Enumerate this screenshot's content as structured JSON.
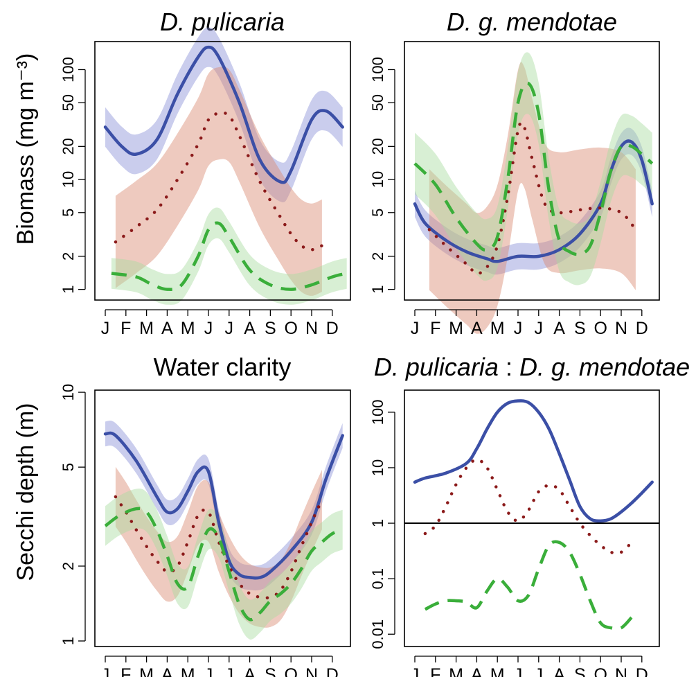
{
  "figure": {
    "ylabels": {
      "top": "Biomass (mg m⁻³)",
      "bottom": "Secchi depth (m)"
    }
  },
  "colors": {
    "solid": "#3b4fa6",
    "dotted": "#8b1a1a",
    "dashed": "#3aae3a",
    "band_solid": "#8a90d8",
    "band_dotted": "#d98a70",
    "band_dashed": "#a8dca0"
  },
  "chart_data": [
    {
      "id": "tl",
      "type": "line",
      "title_parts": [
        {
          "text": "D. pulicaria",
          "italic": true
        }
      ],
      "log": true,
      "ylim": [
        0.8,
        180
      ],
      "ytick_values": [
        1,
        2,
        5,
        10,
        20,
        50,
        100
      ],
      "ytick_labels": [
        "1",
        "2",
        "5",
        "10",
        "20",
        "50",
        "100"
      ],
      "categories": [
        "J",
        "F",
        "M",
        "A",
        "M",
        "J",
        "J",
        "A",
        "S",
        "O",
        "N",
        "D"
      ],
      "series": [
        {
          "style": "solid",
          "band": true,
          "x": [
            0,
            0.8,
            1.5,
            2.5,
            3.5,
            4.5,
            5.0,
            5.5,
            6.5,
            7.5,
            8.5,
            9.0,
            10.0,
            10.7,
            11.5
          ],
          "y": [
            30,
            20,
            17,
            23,
            60,
            130,
            160,
            130,
            50,
            15,
            9.5,
            12,
            35,
            42,
            30
          ]
        },
        {
          "style": "dotted",
          "band": true,
          "x": [
            0.5,
            1.5,
            2.5,
            3.5,
            4.5,
            5.0,
            5.5,
            6.0,
            6.5,
            7.5,
            8.5,
            9.0,
            9.5,
            10.0,
            10.5
          ],
          "y": [
            2.7,
            3.7,
            5.3,
            10,
            21,
            35,
            40,
            38,
            25,
            9.5,
            4.5,
            3.2,
            2.5,
            2.3,
            2.5
          ]
        },
        {
          "style": "dashed",
          "band": true,
          "x": [
            0.3,
            1.5,
            2.3,
            3.0,
            3.7,
            4.5,
            5.0,
            5.5,
            6.0,
            7.0,
            8.0,
            9.0,
            10.0,
            11.0,
            11.7
          ],
          "y": [
            1.4,
            1.3,
            1.1,
            1.0,
            1.1,
            2.0,
            3.5,
            4.0,
            3.0,
            1.5,
            1.1,
            1.0,
            1.1,
            1.3,
            1.4
          ]
        }
      ]
    },
    {
      "id": "tr",
      "type": "line",
      "title_parts": [
        {
          "text": "D. g. mendotae",
          "italic": true
        }
      ],
      "log": true,
      "ylim": [
        0.8,
        180
      ],
      "ytick_values": [
        1,
        2,
        5,
        10,
        20,
        50,
        100
      ],
      "ytick_labels": [
        "1",
        "2",
        "5",
        "10",
        "20",
        "50",
        "100"
      ],
      "categories": [
        "J",
        "F",
        "M",
        "A",
        "M",
        "J",
        "J",
        "A",
        "S",
        "O",
        "N",
        "D"
      ],
      "series": [
        {
          "style": "solid",
          "band": true,
          "x": [
            0,
            0.5,
            1.5,
            2.5,
            3.5,
            4.0,
            5.0,
            6.0,
            7.0,
            8.0,
            9.0,
            9.5,
            10.0,
            10.5,
            11.0,
            11.5
          ],
          "y": [
            6,
            4,
            2.8,
            2.2,
            1.9,
            1.8,
            2.0,
            2.0,
            2.3,
            3.2,
            6,
            12,
            20,
            22,
            15,
            6
          ]
        },
        {
          "style": "dotted",
          "band": true,
          "x": [
            0.7,
            1.5,
            2.5,
            3.0,
            3.5,
            4.0,
            4.5,
            5.0,
            5.3,
            5.7,
            6.3,
            7.0,
            8.0,
            9.0,
            10.0,
            10.7
          ],
          "y": [
            3.5,
            2.5,
            1.7,
            1.4,
            1.6,
            2.5,
            7,
            28,
            30,
            15,
            6,
            5,
            5.3,
            5.5,
            5,
            3.5
          ]
        },
        {
          "style": "dashed",
          "band": true,
          "x": [
            0,
            1.0,
            2.0,
            3.0,
            3.5,
            4.0,
            4.5,
            5.0,
            5.5,
            6.0,
            6.5,
            7.0,
            7.5,
            8.0,
            8.5,
            9.0,
            9.5,
            10.0,
            10.5,
            11.0,
            11.5
          ],
          "y": [
            14,
            9,
            4.5,
            2.6,
            2.3,
            3.0,
            10,
            50,
            75,
            40,
            8,
            2.8,
            2.2,
            2.1,
            2.5,
            5,
            12,
            20,
            20,
            17,
            14
          ]
        }
      ]
    },
    {
      "id": "bl",
      "type": "line",
      "title_parts": [
        {
          "text": "Water clarity",
          "italic": false
        }
      ],
      "log": true,
      "ylim": [
        0.95,
        10.2
      ],
      "ytick_values": [
        1,
        2,
        5,
        10
      ],
      "ytick_labels": [
        "1",
        "2",
        "5",
        "10"
      ],
      "categories": [
        "J",
        "F",
        "M",
        "A",
        "M",
        "J",
        "J",
        "A",
        "S",
        "O",
        "N",
        "D"
      ],
      "series": [
        {
          "style": "solid",
          "band": true,
          "x": [
            0,
            0.5,
            1.5,
            2.5,
            3.0,
            3.5,
            4.0,
            4.5,
            5.0,
            5.5,
            6.0,
            6.5,
            7.0,
            7.5,
            8.0,
            9.0,
            10.0,
            10.7,
            11.5
          ],
          "y": [
            6.8,
            6.7,
            5.3,
            3.8,
            3.3,
            3.4,
            4.0,
            4.8,
            4.8,
            3.0,
            2.1,
            1.85,
            1.8,
            1.8,
            1.9,
            2.3,
            3.0,
            4.5,
            6.7
          ]
        },
        {
          "style": "dotted",
          "band": true,
          "x": [
            0.5,
            1.0,
            1.5,
            2.0,
            2.5,
            3.0,
            3.5,
            4.0,
            4.5,
            5.0,
            5.5,
            6.0,
            6.5,
            7.0,
            7.5,
            8.0,
            8.5,
            9.0,
            9.5,
            10.0,
            10.5
          ],
          "y": [
            3.8,
            3.3,
            2.8,
            2.4,
            2.1,
            1.9,
            2.0,
            2.5,
            3.2,
            3.3,
            2.5,
            2.0,
            1.7,
            1.55,
            1.5,
            1.5,
            1.6,
            1.9,
            2.4,
            3.0,
            3.7
          ]
        },
        {
          "style": "dashed",
          "band": true,
          "x": [
            0,
            0.7,
            1.5,
            2.0,
            2.5,
            3.0,
            3.5,
            4.0,
            4.5,
            5.0,
            5.5,
            6.0,
            6.5,
            7.0,
            7.5,
            8.0,
            8.5,
            9.0,
            9.5,
            10.0,
            10.5,
            11.0,
            11.5
          ],
          "y": [
            2.9,
            3.2,
            3.4,
            3.3,
            2.8,
            2.2,
            1.7,
            1.65,
            2.2,
            2.8,
            2.6,
            1.9,
            1.4,
            1.22,
            1.3,
            1.45,
            1.55,
            1.7,
            1.95,
            2.3,
            2.5,
            2.7,
            2.8
          ]
        }
      ]
    },
    {
      "id": "br",
      "type": "line",
      "title_parts": [
        {
          "text": "D. pulicaria",
          "italic": true
        },
        {
          "text": " : ",
          "italic": false
        },
        {
          "text": "D. g. mendotae",
          "italic": true
        }
      ],
      "log": true,
      "ylim": [
        0.006,
        250
      ],
      "ytick_values": [
        0.01,
        0.1,
        1,
        10,
        100
      ],
      "ytick_labels": [
        "0.01",
        "0.1",
        "1",
        "10",
        "100"
      ],
      "hline": 1,
      "categories": [
        "J",
        "F",
        "M",
        "A",
        "M",
        "J",
        "J",
        "A",
        "S",
        "O",
        "N",
        "D"
      ],
      "series": [
        {
          "style": "solid",
          "band": false,
          "x": [
            0,
            0.5,
            1.5,
            2.5,
            3.0,
            3.5,
            4.0,
            4.5,
            5.0,
            5.5,
            6.0,
            6.5,
            7.0,
            7.5,
            8.0,
            8.5,
            9.0,
            9.5,
            10.0,
            10.5,
            11.0,
            11.5
          ],
          "y": [
            5.5,
            6.5,
            8,
            12,
            22,
            50,
            100,
            145,
            160,
            150,
            100,
            50,
            18,
            6,
            2,
            1.2,
            1.1,
            1.2,
            1.6,
            2.3,
            3.5,
            5.5
          ]
        },
        {
          "style": "dotted",
          "band": false,
          "x": [
            0.5,
            1.0,
            1.5,
            2.0,
            2.5,
            3.0,
            3.5,
            4.0,
            4.5,
            5.0,
            5.5,
            6.0,
            6.5,
            7.0,
            7.5,
            8.0,
            8.5,
            9.0,
            9.5,
            10.0,
            10.5
          ],
          "y": [
            0.65,
            0.9,
            2.0,
            5,
            10,
            14,
            10,
            4,
            1.6,
            1.1,
            1.7,
            3.7,
            4.8,
            4.0,
            2.0,
            1.0,
            0.6,
            0.4,
            0.3,
            0.3,
            0.45
          ]
        },
        {
          "style": "dashed",
          "band": false,
          "x": [
            0.5,
            1.0,
            1.5,
            2.0,
            2.5,
            3.0,
            3.5,
            4.0,
            4.5,
            5.0,
            5.5,
            6.0,
            6.5,
            7.0,
            7.5,
            8.0,
            8.5,
            9.0,
            9.5,
            10.0,
            10.5
          ],
          "y": [
            0.028,
            0.035,
            0.04,
            0.04,
            0.038,
            0.03,
            0.06,
            0.1,
            0.07,
            0.04,
            0.05,
            0.15,
            0.4,
            0.45,
            0.3,
            0.12,
            0.04,
            0.016,
            0.013,
            0.013,
            0.02
          ]
        }
      ]
    }
  ]
}
